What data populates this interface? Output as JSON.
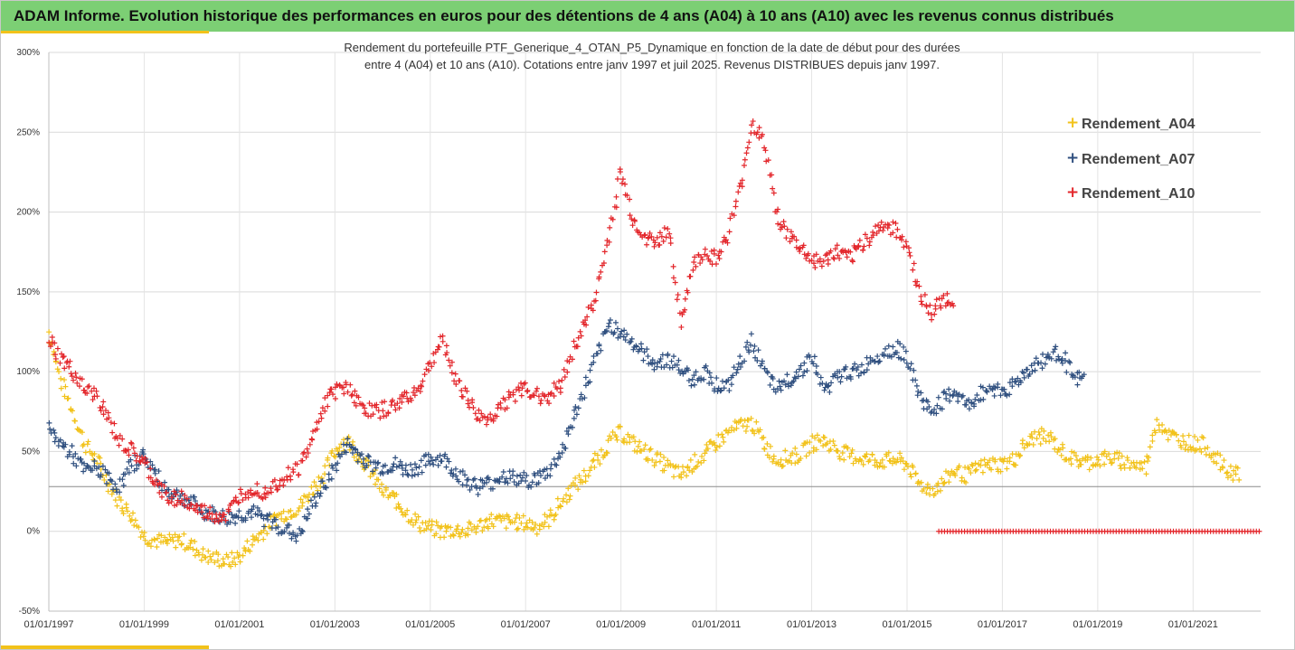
{
  "header": {
    "title": "ADAM Informe. Evolution historique des performances en euros pour des détentions de 4 ans (A04) à 10 ans (A10) avec les revenus connus distribués"
  },
  "colors": {
    "header_bg": "#7ccf74",
    "accent": "#f2c21a",
    "A04": "#f2c21a",
    "A07": "#2f4f7f",
    "A10": "#e3262b"
  },
  "chart_data": {
    "type": "scatter",
    "title_lines": [
      "Rendement du portefeuille PTF_Generique_4_OTAN_P5_Dynamique  en fonction de la date de début pour des durées",
      "entre 4 (A04) et 10 ans (A10). Cotations entre janv 1997 et juil 2025. Revenus DISTRIBUES depuis janv 1997."
    ],
    "xlabel": "",
    "ylabel": "",
    "x_range": [
      "1997-01-01",
      "2022-06-01"
    ],
    "ylim": [
      -50,
      300
    ],
    "y_ticks": [
      "300%",
      "250%",
      "200%",
      "150%",
      "100%",
      "50%",
      "0%",
      "-50%"
    ],
    "x_ticks": [
      "01/01/1997",
      "01/01/1999",
      "01/01/2001",
      "01/01/2003",
      "01/01/2005",
      "01/01/2007",
      "01/01/2009",
      "01/01/2011",
      "01/01/2013",
      "01/01/2015",
      "01/01/2017",
      "01/01/2019",
      "01/01/2021"
    ],
    "grid": true,
    "legend_position": "top-right",
    "marker": "+",
    "series": [
      {
        "name": "Rendement_A04",
        "color": "#f2c21a",
        "points": [
          [
            "1997-01",
            125
          ],
          [
            "1997-04",
            95
          ],
          [
            "1997-07",
            75
          ],
          [
            "1997-10",
            55
          ],
          [
            "1998-01",
            45
          ],
          [
            "1998-04",
            30
          ],
          [
            "1998-07",
            18
          ],
          [
            "1998-10",
            10
          ],
          [
            "1999-01",
            -3
          ],
          [
            "1999-04",
            -6
          ],
          [
            "1999-07",
            -7
          ],
          [
            "1999-10",
            -5
          ],
          [
            "2000-01",
            -9
          ],
          [
            "2000-04",
            -15
          ],
          [
            "2000-07",
            -17
          ],
          [
            "2000-10",
            -19
          ],
          [
            "2001-01",
            -16
          ],
          [
            "2001-04",
            -7
          ],
          [
            "2001-07",
            0
          ],
          [
            "2001-10",
            8
          ],
          [
            "2002-01",
            12
          ],
          [
            "2002-04",
            15
          ],
          [
            "2002-07",
            25
          ],
          [
            "2002-10",
            35
          ],
          [
            "2003-01",
            50
          ],
          [
            "2003-04",
            58
          ],
          [
            "2003-07",
            48
          ],
          [
            "2003-10",
            38
          ],
          [
            "2004-01",
            25
          ],
          [
            "2004-04",
            20
          ],
          [
            "2004-07",
            12
          ],
          [
            "2004-10",
            5
          ],
          [
            "2005-01",
            2
          ],
          [
            "2005-04",
            0
          ],
          [
            "2005-07",
            1
          ],
          [
            "2005-10",
            0
          ],
          [
            "2006-01",
            3
          ],
          [
            "2006-04",
            7
          ],
          [
            "2006-07",
            6
          ],
          [
            "2006-10",
            6
          ],
          [
            "2007-01",
            5
          ],
          [
            "2007-04",
            3
          ],
          [
            "2007-07",
            8
          ],
          [
            "2007-10",
            18
          ],
          [
            "2008-01",
            28
          ],
          [
            "2008-04",
            35
          ],
          [
            "2008-07",
            45
          ],
          [
            "2008-10",
            55
          ],
          [
            "2009-01",
            62
          ],
          [
            "2009-04",
            55
          ],
          [
            "2009-07",
            50
          ],
          [
            "2009-10",
            45
          ],
          [
            "2010-01",
            40
          ],
          [
            "2010-04",
            35
          ],
          [
            "2010-07",
            42
          ],
          [
            "2010-10",
            48
          ],
          [
            "2011-01",
            55
          ],
          [
            "2011-04",
            62
          ],
          [
            "2011-07",
            66
          ],
          [
            "2011-10",
            68
          ],
          [
            "2012-01",
            55
          ],
          [
            "2012-04",
            45
          ],
          [
            "2012-07",
            46
          ],
          [
            "2012-10",
            48
          ],
          [
            "2013-01",
            55
          ],
          [
            "2013-04",
            57
          ],
          [
            "2013-07",
            52
          ],
          [
            "2013-10",
            48
          ],
          [
            "2014-01",
            46
          ],
          [
            "2014-04",
            45
          ],
          [
            "2014-07",
            44
          ],
          [
            "2014-10",
            45
          ],
          [
            "2015-01",
            42
          ],
          [
            "2015-04",
            30
          ],
          [
            "2015-07",
            26
          ],
          [
            "2015-10",
            30
          ],
          [
            "2016-01",
            38
          ],
          [
            "2016-04",
            35
          ],
          [
            "2016-07",
            40
          ],
          [
            "2016-10",
            42
          ],
          [
            "2017-01",
            42
          ],
          [
            "2017-04",
            45
          ],
          [
            "2017-07",
            55
          ],
          [
            "2017-10",
            60
          ],
          [
            "2018-01",
            58
          ],
          [
            "2018-04",
            50
          ],
          [
            "2018-07",
            45
          ],
          [
            "2018-10",
            43
          ],
          [
            "2019-01",
            45
          ],
          [
            "2019-04",
            46
          ],
          [
            "2019-07",
            44
          ],
          [
            "2019-10",
            42
          ],
          [
            "2020-01",
            40
          ],
          [
            "2020-04",
            70
          ],
          [
            "2020-07",
            60
          ],
          [
            "2020-10",
            57
          ],
          [
            "2021-01",
            55
          ],
          [
            "2021-04",
            54
          ],
          [
            "2021-07",
            45
          ],
          [
            "2021-10",
            37
          ]
        ]
      },
      {
        "name": "Rendement_A07",
        "color": "#2f4f7f",
        "points": [
          [
            "1997-01",
            63
          ],
          [
            "1997-04",
            55
          ],
          [
            "1997-07",
            48
          ],
          [
            "1997-10",
            38
          ],
          [
            "1998-01",
            40
          ],
          [
            "1998-04",
            33
          ],
          [
            "1998-07",
            28
          ],
          [
            "1998-10",
            42
          ],
          [
            "1999-01",
            48
          ],
          [
            "1999-04",
            35
          ],
          [
            "1999-07",
            25
          ],
          [
            "1999-10",
            22
          ],
          [
            "2000-01",
            18
          ],
          [
            "2000-04",
            12
          ],
          [
            "2000-07",
            10
          ],
          [
            "2000-10",
            8
          ],
          [
            "2001-01",
            10
          ],
          [
            "2001-04",
            12
          ],
          [
            "2001-07",
            8
          ],
          [
            "2001-10",
            5
          ],
          [
            "2002-01",
            0
          ],
          [
            "2002-04",
            -3
          ],
          [
            "2002-07",
            15
          ],
          [
            "2002-10",
            28
          ],
          [
            "2003-01",
            40
          ],
          [
            "2003-04",
            55
          ],
          [
            "2003-07",
            48
          ],
          [
            "2003-10",
            42
          ],
          [
            "2004-01",
            40
          ],
          [
            "2004-04",
            42
          ],
          [
            "2004-07",
            38
          ],
          [
            "2004-10",
            40
          ],
          [
            "2005-01",
            45
          ],
          [
            "2005-04",
            46
          ],
          [
            "2005-07",
            38
          ],
          [
            "2005-10",
            32
          ],
          [
            "2006-01",
            28
          ],
          [
            "2006-04",
            30
          ],
          [
            "2006-07",
            35
          ],
          [
            "2006-10",
            33
          ],
          [
            "2007-01",
            32
          ],
          [
            "2007-04",
            33
          ],
          [
            "2007-07",
            38
          ],
          [
            "2007-10",
            50
          ],
          [
            "2008-01",
            70
          ],
          [
            "2008-04",
            90
          ],
          [
            "2008-07",
            110
          ],
          [
            "2008-10",
            130
          ],
          [
            "2009-01",
            125
          ],
          [
            "2009-04",
            118
          ],
          [
            "2009-07",
            110
          ],
          [
            "2009-10",
            105
          ],
          [
            "2010-01",
            108
          ],
          [
            "2010-04",
            102
          ],
          [
            "2010-07",
            95
          ],
          [
            "2010-10",
            100
          ],
          [
            "2011-01",
            92
          ],
          [
            "2011-04",
            90
          ],
          [
            "2011-07",
            105
          ],
          [
            "2011-10",
            120
          ],
          [
            "2012-01",
            100
          ],
          [
            "2012-04",
            88
          ],
          [
            "2012-07",
            95
          ],
          [
            "2012-10",
            100
          ],
          [
            "2013-01",
            110
          ],
          [
            "2013-04",
            88
          ],
          [
            "2013-07",
            95
          ],
          [
            "2013-10",
            100
          ],
          [
            "2014-01",
            100
          ],
          [
            "2014-04",
            108
          ],
          [
            "2014-07",
            112
          ],
          [
            "2014-10",
            115
          ],
          [
            "2015-01",
            110
          ],
          [
            "2015-04",
            85
          ],
          [
            "2015-07",
            75
          ],
          [
            "2015-10",
            82
          ],
          [
            "2016-01",
            88
          ],
          [
            "2016-04",
            78
          ],
          [
            "2016-07",
            85
          ],
          [
            "2016-10",
            90
          ],
          [
            "2017-01",
            88
          ],
          [
            "2017-04",
            92
          ],
          [
            "2017-07",
            100
          ],
          [
            "2017-10",
            105
          ],
          [
            "2018-01",
            110
          ],
          [
            "2018-04",
            112
          ],
          [
            "2018-07",
            95
          ]
        ]
      },
      {
        "name": "Rendement_A10",
        "color": "#e3262b",
        "points": [
          [
            "1997-01",
            120
          ],
          [
            "1997-04",
            108
          ],
          [
            "1997-07",
            100
          ],
          [
            "1997-10",
            88
          ],
          [
            "1998-01",
            85
          ],
          [
            "1998-04",
            70
          ],
          [
            "1998-07",
            55
          ],
          [
            "1998-10",
            50
          ],
          [
            "1999-01",
            42
          ],
          [
            "1999-04",
            30
          ],
          [
            "1999-07",
            20
          ],
          [
            "1999-10",
            22
          ],
          [
            "2000-01",
            15
          ],
          [
            "2000-04",
            12
          ],
          [
            "2000-07",
            10
          ],
          [
            "2000-10",
            10
          ],
          [
            "2001-01",
            22
          ],
          [
            "2001-04",
            28
          ],
          [
            "2001-07",
            25
          ],
          [
            "2001-10",
            30
          ],
          [
            "2002-01",
            35
          ],
          [
            "2002-04",
            40
          ],
          [
            "2002-07",
            55
          ],
          [
            "2002-10",
            78
          ],
          [
            "2003-01",
            88
          ],
          [
            "2003-04",
            92
          ],
          [
            "2003-07",
            80
          ],
          [
            "2003-10",
            75
          ],
          [
            "2004-01",
            76
          ],
          [
            "2004-04",
            78
          ],
          [
            "2004-07",
            85
          ],
          [
            "2004-10",
            88
          ],
          [
            "2005-01",
            105
          ],
          [
            "2005-04",
            120
          ],
          [
            "2005-07",
            98
          ],
          [
            "2005-10",
            85
          ],
          [
            "2006-01",
            72
          ],
          [
            "2006-04",
            70
          ],
          [
            "2006-07",
            80
          ],
          [
            "2006-10",
            85
          ],
          [
            "2007-01",
            90
          ],
          [
            "2007-04",
            85
          ],
          [
            "2007-07",
            85
          ],
          [
            "2007-10",
            92
          ],
          [
            "2008-01",
            115
          ],
          [
            "2008-04",
            130
          ],
          [
            "2008-07",
            150
          ],
          [
            "2008-10",
            185
          ],
          [
            "2009-01",
            225
          ],
          [
            "2009-04",
            195
          ],
          [
            "2009-07",
            185
          ],
          [
            "2009-10",
            180
          ],
          [
            "2010-01",
            190
          ],
          [
            "2010-04",
            130
          ],
          [
            "2010-07",
            165
          ],
          [
            "2010-10",
            175
          ],
          [
            "2011-01",
            170
          ],
          [
            "2011-04",
            185
          ],
          [
            "2011-07",
            215
          ],
          [
            "2011-10",
            255
          ],
          [
            "2012-01",
            245
          ],
          [
            "2012-04",
            200
          ],
          [
            "2012-07",
            185
          ],
          [
            "2012-10",
            178
          ],
          [
            "2013-01",
            170
          ],
          [
            "2013-04",
            168
          ],
          [
            "2013-07",
            175
          ],
          [
            "2013-10",
            170
          ],
          [
            "2014-01",
            178
          ],
          [
            "2014-04",
            185
          ],
          [
            "2014-07",
            192
          ],
          [
            "2014-10",
            190
          ],
          [
            "2015-01",
            180
          ],
          [
            "2015-04",
            150
          ],
          [
            "2015-07",
            135
          ],
          [
            "2015-10",
            145
          ]
        ]
      },
      {
        "name": "",
        "color": "#e3262b",
        "x_from": "2015-09",
        "x_to": "2022-06",
        "constant_value": 0
      }
    ],
    "reference_lines": [
      28
    ]
  }
}
